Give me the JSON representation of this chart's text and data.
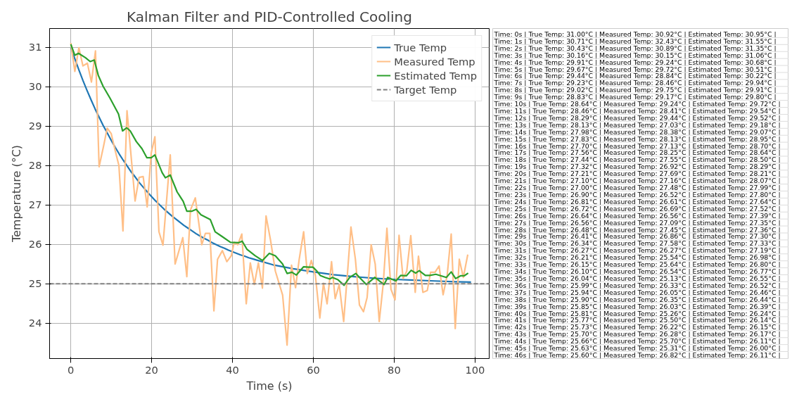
{
  "chart_data": [
    {
      "type": "line",
      "title": "Kalman Filter and PID-Controlled Cooling",
      "xlabel": "Time (s)",
      "ylabel": "Temperature (°C)",
      "xlim": [
        -5.25,
        103.5
      ],
      "ylim": [
        23.1,
        31.48
      ],
      "xticks": [
        0,
        20,
        40,
        60,
        80,
        100
      ],
      "yticks": [
        24,
        25,
        26,
        27,
        28,
        29,
        30,
        31
      ],
      "grid": true,
      "legend": "top right",
      "line_style": "solid",
      "marker": "none",
      "series": [
        {
          "name": "True Temp",
          "color": "#1f77b4",
          "x": [
            0,
            1,
            2,
            3,
            4,
            5,
            6,
            7,
            8,
            9,
            10,
            11,
            12,
            13,
            14,
            15,
            16,
            17,
            18,
            19,
            20,
            21,
            22,
            23,
            24,
            25,
            26,
            27,
            28,
            29,
            30,
            31,
            32,
            33,
            34,
            35,
            36,
            37,
            38,
            39,
            40,
            41,
            42,
            43,
            44,
            45,
            46,
            50,
            55,
            60,
            65,
            70,
            75,
            80,
            85,
            90,
            95,
            99
          ],
          "values": [
            31.0,
            30.71,
            30.43,
            30.16,
            29.91,
            29.67,
            29.44,
            29.23,
            29.02,
            28.83,
            28.64,
            28.46,
            28.29,
            28.13,
            27.98,
            27.83,
            27.7,
            27.56,
            27.44,
            27.32,
            27.21,
            27.1,
            27.0,
            26.9,
            26.81,
            26.72,
            26.64,
            26.56,
            26.48,
            26.41,
            26.34,
            26.27,
            26.21,
            26.15,
            26.1,
            26.04,
            25.99,
            25.94,
            25.9,
            25.85,
            25.81,
            25.77,
            25.73,
            25.7,
            25.66,
            25.63,
            25.6,
            25.48,
            25.38,
            25.3,
            25.23,
            25.18,
            25.14,
            25.11,
            25.09,
            25.07,
            25.05,
            25.04
          ]
        },
        {
          "name": "Measured Temp",
          "color": "#ffbf87",
          "x": [
            0,
            1,
            2,
            3,
            4.1,
            5.1,
            6.1,
            7,
            8.1,
            9,
            10,
            11,
            11.9,
            12.9,
            13.9,
            14.8,
            15.9,
            16.9,
            17.9,
            18.9,
            19.9,
            20.8,
            21.8,
            22.8,
            24.6,
            25.8,
            27.7,
            28.7,
            29.6,
            30.8,
            32.4,
            33.3,
            34.4,
            35.4,
            36.3,
            37.5,
            38.6,
            39.7,
            40.4,
            41.3,
            42.3,
            43.4,
            44.4,
            45.4,
            46.4,
            47.4,
            48.3,
            49.4,
            50.6,
            52.4,
            53.5,
            54.6,
            55.6,
            56.5,
            57.6,
            58.5,
            59.5,
            60.5,
            61.6,
            62.5,
            63.4,
            64.5,
            65.4,
            66.4,
            67.5,
            68.4,
            69.3,
            70.4,
            71.4,
            72.4,
            73.3,
            74.3,
            75.3,
            76.3,
            77.3,
            78.2,
            79.2,
            80.2,
            81.2,
            82.2,
            83.1,
            84.1,
            85.2,
            86,
            87.1,
            88.2,
            89,
            90.1,
            91.1,
            92.1,
            93.1,
            94.1,
            95.1,
            96.1,
            97.1,
            98.2
          ],
          "values": [
            31.11,
            30.39,
            30.99,
            30.53,
            30.6,
            30.12,
            30.91,
            27.97,
            28.49,
            28.95,
            28.81,
            28.37,
            28.0,
            26.34,
            29.39,
            28.37,
            27.1,
            27.7,
            27.72,
            26.95,
            28.32,
            28.73,
            26.32,
            25.98,
            28.27,
            25.5,
            26.17,
            25.18,
            26.87,
            27.18,
            25.99,
            26.28,
            26.28,
            24.31,
            25.62,
            25.84,
            25.56,
            25.71,
            26.05,
            25.99,
            26.26,
            24.49,
            25.53,
            24.98,
            25.53,
            24.89,
            26.72,
            26.11,
            25.32,
            24.71,
            23.44,
            25.47,
            24.9,
            25.62,
            26.32,
            25.26,
            25.59,
            25.21,
            24.13,
            25.01,
            24.49,
            25.56,
            24.62,
            24.98,
            24.04,
            25.21,
            26.44,
            25.62,
            24.46,
            24.29,
            24.65,
            25.99,
            25.5,
            24.04,
            25.01,
            26.41,
            24.86,
            24.59,
            26.23,
            25.13,
            25.32,
            26.22,
            24.78,
            25.7,
            24.78,
            24.83,
            25.29,
            25.29,
            25.45,
            24.72,
            25.21,
            26.26,
            23.86,
            25.62,
            25.16,
            25.74
          ]
        },
        {
          "name": "Estimated Temp",
          "color": "#2ca02c",
          "x": [
            0,
            1,
            1.9,
            3.6,
            4.8,
            5.8,
            6.8,
            8,
            9.7,
            11.8,
            12.8,
            13.8,
            14.7,
            16.2,
            17.6,
            18.8,
            19.9,
            20.8,
            22.6,
            23.4,
            24.6,
            26.3,
            27.8,
            28.7,
            29.9,
            31,
            32.2,
            34.5,
            35.7,
            37.4,
            39.5,
            41.5,
            42.4,
            43.6,
            45.6,
            47.4,
            49.1,
            50.6,
            52.4,
            53.5,
            54.7,
            55.8,
            57.6,
            58.8,
            59.9,
            60.8,
            61.7,
            62.9,
            64.1,
            64.7,
            66.1,
            67.6,
            69,
            70.5,
            71.7,
            73.1,
            75.2,
            77.5,
            78.4,
            80.4,
            81.6,
            83,
            84.2,
            85.3,
            86.2,
            87.7,
            88.8,
            90.3,
            92.9,
            94.1,
            95.2,
            96.4,
            97.3,
            98.3
          ],
          "values": [
            31.08,
            30.8,
            30.85,
            30.74,
            30.64,
            30.68,
            30.29,
            30.01,
            29.71,
            29.31,
            28.88,
            28.96,
            28.88,
            28.61,
            28.43,
            28.2,
            28.2,
            28.27,
            27.82,
            27.69,
            27.76,
            27.33,
            27.09,
            26.84,
            26.84,
            26.89,
            26.75,
            26.63,
            26.32,
            26.2,
            26.05,
            26.04,
            26.08,
            25.87,
            25.71,
            25.59,
            25.77,
            25.71,
            25.5,
            25.26,
            25.29,
            25.22,
            25.43,
            25.42,
            25.42,
            25.33,
            25.21,
            25.16,
            25.12,
            25.16,
            25.1,
            24.96,
            25.16,
            25.26,
            25.13,
            24.98,
            25.16,
            24.98,
            25.16,
            25.07,
            25.21,
            25.2,
            25.34,
            25.27,
            25.33,
            25.21,
            25.21,
            25.24,
            25.16,
            25.3,
            25.13,
            25.2,
            25.2,
            25.27
          ]
        }
      ],
      "ref_lines": [
        {
          "axis": "y",
          "value": 25,
          "label": "Target Temp",
          "color": "#808080",
          "line_style": "dashed"
        }
      ]
    },
    {
      "type": "other",
      "annotations": [
        "Time: 0s | True Temp: 31.00°C | Measured Temp: 30.92°C | Estimated Temp: 30.95°C |",
        "Time: 1s | True Temp: 30.71°C | Measured Temp: 32.43°C | Estimated Temp: 31.55°C |",
        "Time: 2s | True Temp: 30.43°C | Measured Temp: 30.89°C | Estimated Temp: 31.35°C |",
        "Time: 3s | True Temp: 30.16°C | Measured Temp: 30.15°C | Estimated Temp: 31.06°C |",
        "Time: 4s | True Temp: 29.91°C | Measured Temp: 29.24°C | Estimated Temp: 30.68°C |",
        "Time: 5s | True Temp: 29.67°C | Measured Temp: 29.72°C | Estimated Temp: 30.51°C |",
        "Time: 6s | True Temp: 29.44°C | Measured Temp: 28.84°C | Estimated Temp: 30.22°C |",
        "Time: 7s | True Temp: 29.23°C | Measured Temp: 28.46°C | Estimated Temp: 29.94°C |",
        "Time: 8s | True Temp: 29.02°C | Measured Temp: 29.75°C | Estimated Temp: 29.91°C |",
        "Time: 9s | True Temp: 28.83°C | Measured Temp: 29.17°C | Estimated Temp: 29.80°C |",
        "Time: 10s | True Temp: 28.64°C | Measured Temp: 29.24°C | Estimated Temp: 29.72°C |",
        "Time: 11s | True Temp: 28.46°C | Measured Temp: 28.41°C | Estimated Temp: 29.54°C |",
        "Time: 12s | True Temp: 28.29°C | Measured Temp: 29.44°C | Estimated Temp: 29.52°C |",
        "Time: 13s | True Temp: 28.13°C | Measured Temp: 27.03°C | Estimated Temp: 29.18°C |",
        "Time: 14s | True Temp: 27.98°C | Measured Temp: 28.38°C | Estimated Temp: 29.07°C |",
        "Time: 15s | True Temp: 27.83°C | Measured Temp: 28.13°C | Estimated Temp: 28.95°C |",
        "Time: 16s | True Temp: 27.70°C | Measured Temp: 27.13°C | Estimated Temp: 28.70°C |",
        "Time: 17s | True Temp: 27.56°C | Measured Temp: 28.25°C | Estimated Temp: 28.64°C |",
        "Time: 18s | True Temp: 27.44°C | Measured Temp: 27.55°C | Estimated Temp: 28.50°C |",
        "Time: 19s | True Temp: 27.32°C | Measured Temp: 26.92°C | Estimated Temp: 28.29°C |",
        "Time: 20s | True Temp: 27.21°C | Measured Temp: 27.69°C | Estimated Temp: 28.21°C |",
        "Time: 21s | True Temp: 27.10°C | Measured Temp: 27.16°C | Estimated Temp: 28.07°C |",
        "Time: 22s | True Temp: 27.00°C | Measured Temp: 27.48°C | Estimated Temp: 27.99°C |",
        "Time: 23s | True Temp: 26.90°C | Measured Temp: 26.52°C | Estimated Temp: 27.80°C |",
        "Time: 24s | True Temp: 26.81°C | Measured Temp: 26.61°C | Estimated Temp: 27.64°C |",
        "Time: 25s | True Temp: 26.72°C | Measured Temp: 26.69°C | Estimated Temp: 27.52°C |",
        "Time: 26s | True Temp: 26.64°C | Measured Temp: 26.56°C | Estimated Temp: 27.39°C |",
        "Time: 27s | True Temp: 26.56°C | Measured Temp: 27.09°C | Estimated Temp: 27.35°C |",
        "Time: 28s | True Temp: 26.48°C | Measured Temp: 27.45°C | Estimated Temp: 27.36°C |",
        "Time: 29s | True Temp: 26.41°C | Measured Temp: 26.86°C | Estimated Temp: 27.30°C |",
        "Time: 30s | True Temp: 26.34°C | Measured Temp: 27.58°C | Estimated Temp: 27.33°C |",
        "Time: 31s | True Temp: 26.27°C | Measured Temp: 26.27°C | Estimated Temp: 27.19°C |",
        "Time: 32s | True Temp: 26.21°C | Measured Temp: 25.54°C | Estimated Temp: 26.98°C |",
        "Time: 33s | True Temp: 26.15°C | Measured Temp: 25.64°C | Estimated Temp: 26.80°C |",
        "Time: 34s | True Temp: 26.10°C | Measured Temp: 26.54°C | Estimated Temp: 26.77°C |",
        "Time: 35s | True Temp: 26.04°C | Measured Temp: 25.13°C | Estimated Temp: 26.55°C |",
        "Time: 36s | True Temp: 25.99°C | Measured Temp: 26.33°C | Estimated Temp: 26.52°C |",
        "Time: 37s | True Temp: 25.94°C | Measured Temp: 26.05°C | Estimated Temp: 26.46°C |",
        "Time: 38s | True Temp: 25.90°C | Measured Temp: 26.35°C | Estimated Temp: 26.44°C |",
        "Time: 39s | True Temp: 25.85°C | Measured Temp: 26.03°C | Estimated Temp: 26.39°C |",
        "Time: 40s | True Temp: 25.81°C | Measured Temp: 25.26°C | Estimated Temp: 26.24°C |",
        "Time: 41s | True Temp: 25.77°C | Measured Temp: 25.50°C | Estimated Temp: 26.14°C |",
        "Time: 42s | True Temp: 25.73°C | Measured Temp: 26.22°C | Estimated Temp: 26.15°C |",
        "Time: 43s | True Temp: 25.70°C | Measured Temp: 26.28°C | Estimated Temp: 26.17°C |",
        "Time: 44s | True Temp: 25.66°C | Measured Temp: 25.70°C | Estimated Temp: 26.11°C |",
        "Time: 45s | True Temp: 25.63°C | Measured Temp: 25.31°C | Estimated Temp: 26.00°C |",
        "Time: 46s | True Temp: 25.60°C | Measured Temp: 26.82°C | Estimated Temp: 26.11°C |"
      ]
    }
  ]
}
